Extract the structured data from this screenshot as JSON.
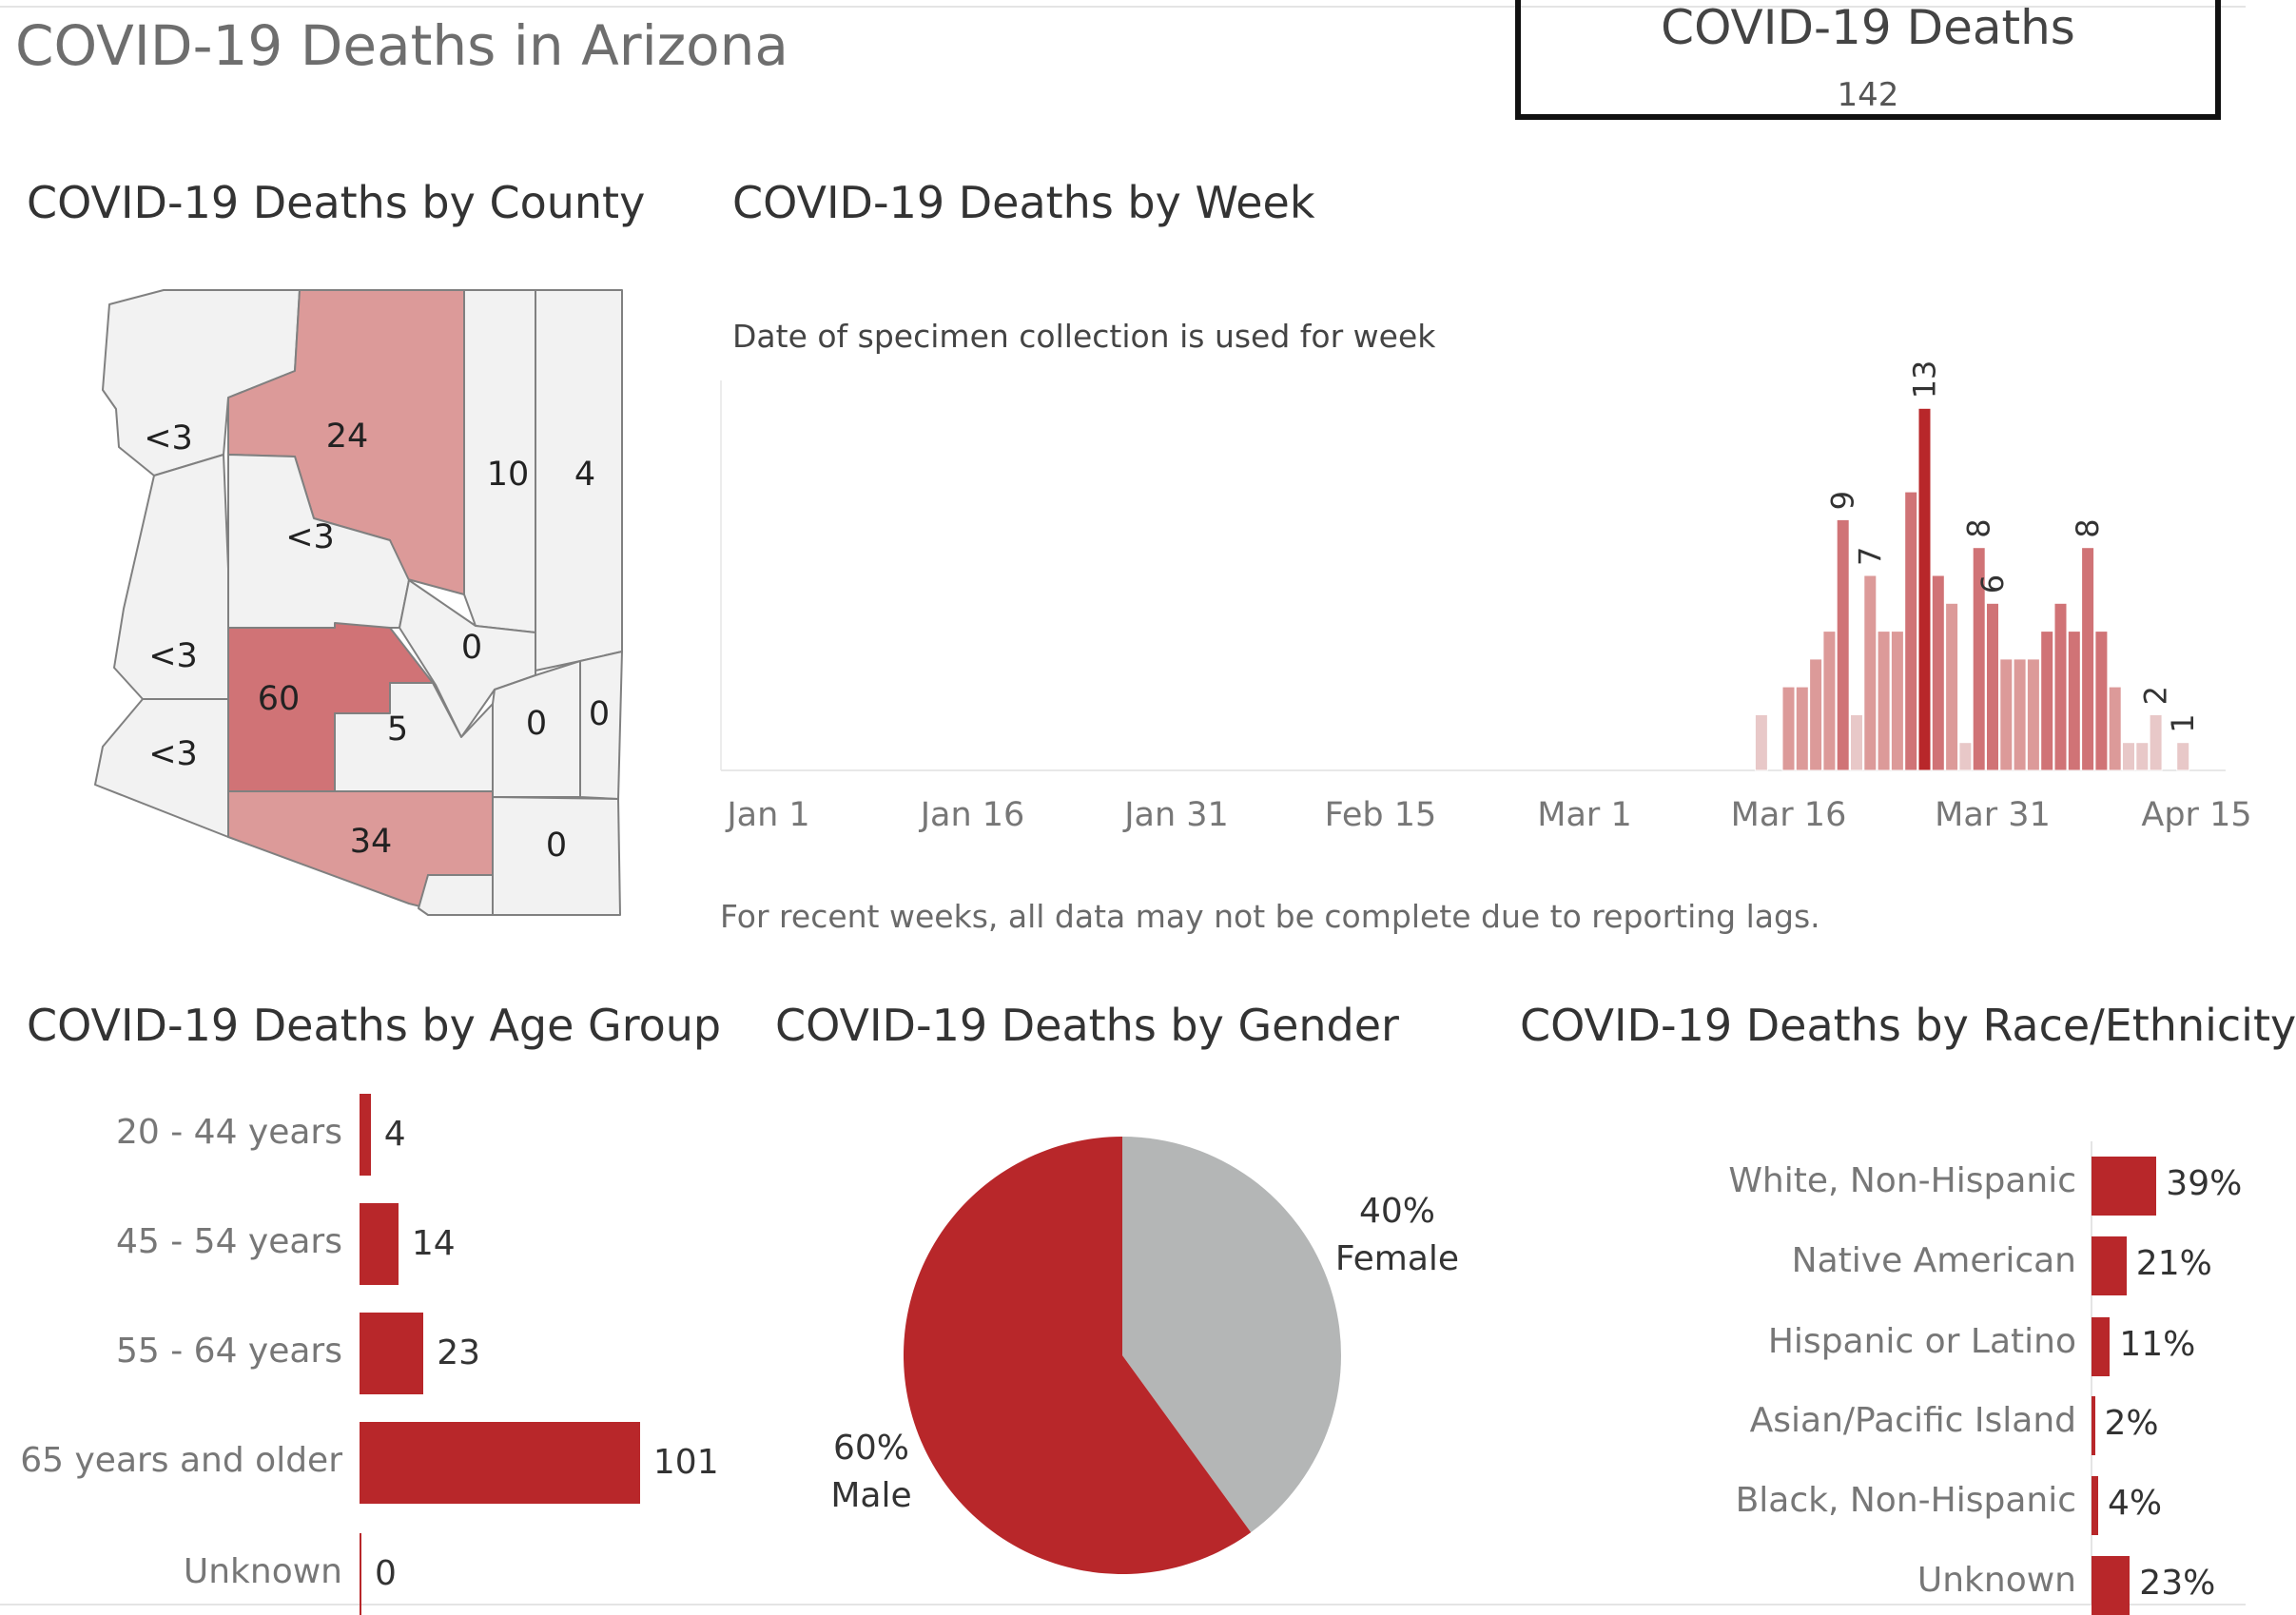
{
  "dashboard": {
    "title": "COVID-19 Deaths in Arizona",
    "kpi_label": "COVID-19 Deaths",
    "kpi_value": "142"
  },
  "colors": {
    "accent": "#b8272a",
    "pink": "#dc9a99",
    "mid": "#d07376",
    "light": "#e8c8c8",
    "gray": "#b4b6b6",
    "map_blank": "#f2f2f2"
  },
  "chart_data": [
    {
      "type": "map",
      "title": "COVID-19 Deaths by County",
      "regions": [
        {
          "name": "Mohave",
          "label": "<3"
        },
        {
          "name": "Coconino",
          "label": "24",
          "value": 24
        },
        {
          "name": "Yavapai",
          "label": "<3"
        },
        {
          "name": "Navajo",
          "label": "10",
          "value": 10
        },
        {
          "name": "Apache",
          "label": "4",
          "value": 4
        },
        {
          "name": "La Paz",
          "label": "<3"
        },
        {
          "name": "Yuma",
          "label": "<3"
        },
        {
          "name": "Maricopa",
          "label": "60",
          "value": 60
        },
        {
          "name": "Gila",
          "label": "0",
          "value": 0
        },
        {
          "name": "Pinal",
          "label": "5",
          "value": 5
        },
        {
          "name": "Graham",
          "label": "0",
          "value": 0
        },
        {
          "name": "Greenlee",
          "label": "0",
          "value": 0
        },
        {
          "name": "Pima",
          "label": "34",
          "value": 34
        },
        {
          "name": "Cochise",
          "label": "0",
          "value": 0
        },
        {
          "name": "Santa Cruz",
          "label": ""
        }
      ]
    },
    {
      "type": "bar",
      "title": "COVID-19 Deaths by Week",
      "subtitle": "Date of specimen collection is used for week",
      "footnote": "For recent weeks, all data may not be complete due to reporting lags.",
      "x_ticks": [
        "Jan 1",
        "Jan 16",
        "Jan 31",
        "Feb 15",
        "Mar 1",
        "Mar 16",
        "Mar 31",
        "Apr 15"
      ],
      "bars": [
        {
          "date": "2020-03-14",
          "value": 2,
          "shade": "light"
        },
        {
          "date": "2020-03-16",
          "value": 3,
          "shade": "pink"
        },
        {
          "date": "2020-03-17",
          "value": 3,
          "shade": "pink"
        },
        {
          "date": "2020-03-18",
          "value": 4,
          "shade": "pink"
        },
        {
          "date": "2020-03-19",
          "value": 5,
          "shade": "pink"
        },
        {
          "date": "2020-03-20",
          "value": 9,
          "shade": "mid",
          "label": "9"
        },
        {
          "date": "2020-03-21",
          "value": 2,
          "shade": "light"
        },
        {
          "date": "2020-03-22",
          "value": 7,
          "shade": "pink",
          "label": "7"
        },
        {
          "date": "2020-03-23",
          "value": 5,
          "shade": "pink"
        },
        {
          "date": "2020-03-24",
          "value": 5,
          "shade": "pink"
        },
        {
          "date": "2020-03-25",
          "value": 10,
          "shade": "mid"
        },
        {
          "date": "2020-03-26",
          "value": 13,
          "shade": "accent",
          "label": "13"
        },
        {
          "date": "2020-03-27",
          "value": 7,
          "shade": "mid"
        },
        {
          "date": "2020-03-28",
          "value": 6,
          "shade": "pink"
        },
        {
          "date": "2020-03-29",
          "value": 1,
          "shade": "light"
        },
        {
          "date": "2020-03-30",
          "value": 8,
          "shade": "mid",
          "label": "8"
        },
        {
          "date": "2020-03-31",
          "value": 6,
          "shade": "mid",
          "label": "6"
        },
        {
          "date": "2020-04-01",
          "value": 4,
          "shade": "pink"
        },
        {
          "date": "2020-04-02",
          "value": 4,
          "shade": "pink"
        },
        {
          "date": "2020-04-03",
          "value": 4,
          "shade": "pink"
        },
        {
          "date": "2020-04-04",
          "value": 5,
          "shade": "mid"
        },
        {
          "date": "2020-04-05",
          "value": 6,
          "shade": "mid"
        },
        {
          "date": "2020-04-06",
          "value": 5,
          "shade": "mid"
        },
        {
          "date": "2020-04-07",
          "value": 8,
          "shade": "mid",
          "label": "8"
        },
        {
          "date": "2020-04-08",
          "value": 5,
          "shade": "mid"
        },
        {
          "date": "2020-04-09",
          "value": 3,
          "shade": "pink"
        },
        {
          "date": "2020-04-10",
          "value": 1,
          "shade": "light"
        },
        {
          "date": "2020-04-11",
          "value": 1,
          "shade": "light"
        },
        {
          "date": "2020-04-12",
          "value": 2,
          "shade": "light",
          "label": "2"
        },
        {
          "date": "2020-04-14",
          "value": 1,
          "shade": "light",
          "label": "1"
        }
      ]
    },
    {
      "type": "bar",
      "orientation": "horizontal",
      "title": "COVID-19 Deaths by Age Group",
      "categories": [
        "20 - 44 years",
        "45 - 54 years",
        "55 - 64 years",
        "65 years and older",
        "Unknown"
      ],
      "values": [
        4,
        14,
        23,
        101,
        0
      ]
    },
    {
      "type": "pie",
      "title": "COVID-19 Deaths by Gender",
      "slices": [
        {
          "name": "Female",
          "value": 40,
          "label": "40%"
        },
        {
          "name": "Male",
          "value": 60,
          "label": "60%"
        }
      ]
    },
    {
      "type": "bar",
      "orientation": "horizontal",
      "title": "COVID-19 Deaths by Race/Ethnicity",
      "categories": [
        "White, Non-Hispanic",
        "Native American",
        "Hispanic or Latino",
        "Asian/Pacific Island",
        "Black, Non-Hispanic",
        "Unknown"
      ],
      "values": [
        39,
        21,
        11,
        2,
        4,
        23
      ],
      "labels": [
        "39%",
        "21%",
        "11%",
        "2%",
        "4%",
        "23%"
      ]
    }
  ]
}
